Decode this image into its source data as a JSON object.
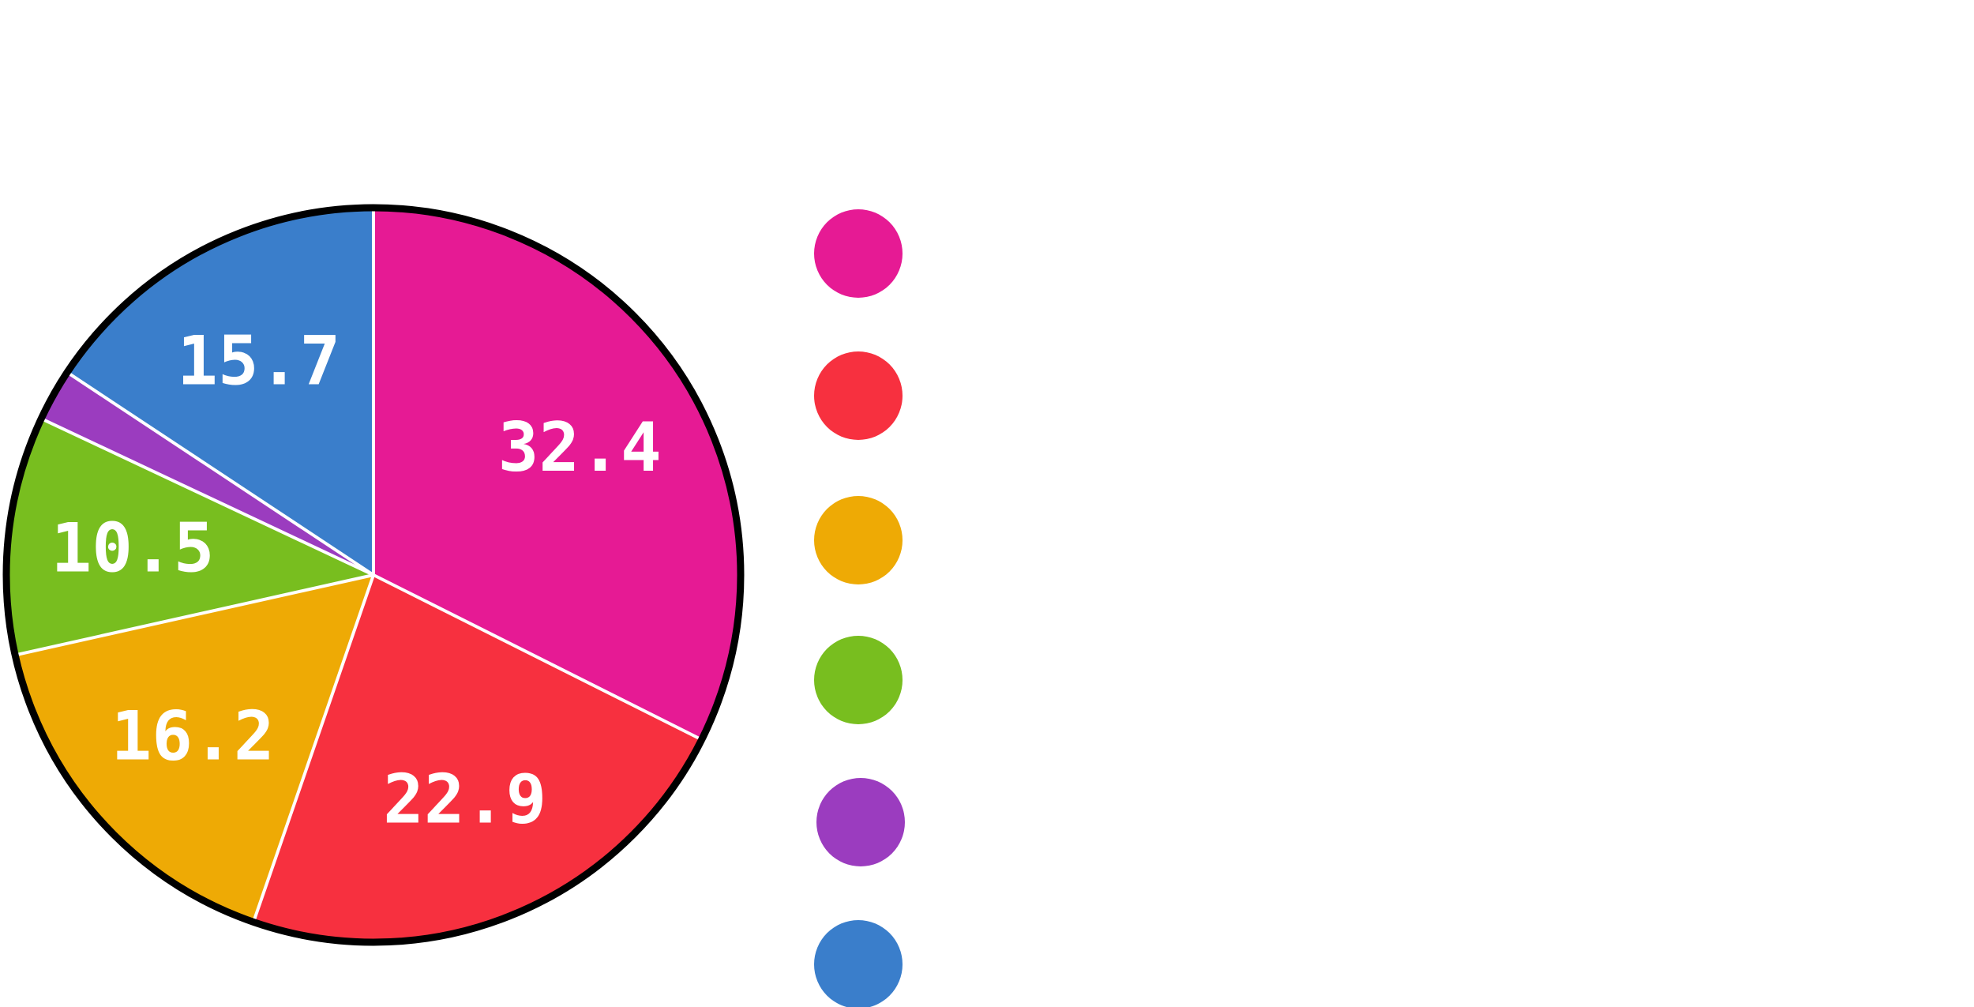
{
  "chart_data": {
    "type": "pie",
    "title": "",
    "start_angle_deg": 0,
    "direction": "clockwise",
    "slices": [
      {
        "value": 32.4,
        "label": "32.4",
        "color": "#e61a94",
        "show_label": true
      },
      {
        "value": 22.9,
        "label": "22.9",
        "color": "#f7303f",
        "show_label": true
      },
      {
        "value": 16.2,
        "label": "16.2",
        "color": "#eeaa05",
        "show_label": true
      },
      {
        "value": 10.5,
        "label": "10.5",
        "color": "#78be1f",
        "show_label": true
      },
      {
        "value": 2.3,
        "label": "",
        "color": "#9b3cbf",
        "show_label": false
      },
      {
        "value": 15.7,
        "label": "15.7",
        "color": "#3a7ecb",
        "show_label": true
      }
    ],
    "legend": {
      "placement": "right",
      "markers": [
        "#e61a94",
        "#f7303f",
        "#eeaa05",
        "#78be1f",
        "#9b3cbf",
        "#3a7ecb"
      ]
    },
    "separator_color": "#ffffff",
    "outline_color": "#000000"
  }
}
